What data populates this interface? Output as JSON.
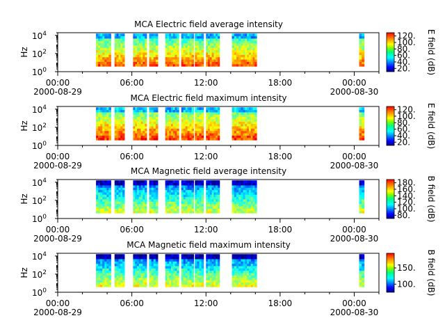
{
  "chart_data": [
    {
      "type": "heatmap",
      "title": "MCA  Electric field average intensity",
      "ylabel": "Hz",
      "y_scale": "log",
      "ylim": [
        1,
        20000
      ],
      "y_ticks": [
        {
          "value": 1,
          "base": "10",
          "exp": "0"
        },
        {
          "value": 100,
          "base": "10",
          "exp": "2"
        },
        {
          "value": 10000,
          "base": "10",
          "exp": "4"
        }
      ],
      "x_ticks": [
        "00:00",
        "06:00",
        "12:00",
        "18:00",
        "00:00"
      ],
      "x_date_labels": [
        "2000-08-29",
        "",
        "",
        "",
        "2000-08-30"
      ],
      "colorbar": {
        "label": "E field (dB)",
        "range": [
          10,
          130
        ],
        "ticks": [
          "20.",
          "40.",
          "60.",
          "80.",
          "100.",
          "120."
        ],
        "tick_values": [
          20,
          40,
          60,
          80,
          100,
          120
        ]
      },
      "data_intervals_hours": [
        [
          3.1,
          4.3
        ],
        [
          4.6,
          5.4
        ],
        [
          6.1,
          7.2
        ],
        [
          7.4,
          8.1
        ],
        [
          8.7,
          9.8
        ],
        [
          10.0,
          11.0
        ],
        [
          11.1,
          11.8
        ],
        [
          12.0,
          13.1
        ],
        [
          14.1,
          15.0
        ],
        [
          15.0,
          16.1
        ],
        [
          24.4,
          24.8
        ]
      ],
      "value_profile": {
        "low_freq_value": 105,
        "high_freq_value": 55,
        "top_band_value": 45
      }
    },
    {
      "type": "heatmap",
      "title": "MCA  Electric field maximum intensity",
      "ylabel": "Hz",
      "y_scale": "log",
      "ylim": [
        1,
        20000
      ],
      "y_ticks": [
        {
          "value": 1,
          "base": "10",
          "exp": "0"
        },
        {
          "value": 100,
          "base": "10",
          "exp": "2"
        },
        {
          "value": 10000,
          "base": "10",
          "exp": "4"
        }
      ],
      "x_ticks": [
        "00:00",
        "06:00",
        "12:00",
        "18:00",
        "00:00"
      ],
      "x_date_labels": [
        "2000-08-29",
        "",
        "",
        "",
        "2000-08-30"
      ],
      "colorbar": {
        "label": "E field (dB)",
        "range": [
          10,
          130
        ],
        "ticks": [
          "20.",
          "40.",
          "60.",
          "80.",
          "100.",
          "120."
        ],
        "tick_values": [
          20,
          40,
          60,
          80,
          100,
          120
        ]
      },
      "data_intervals_hours": [
        [
          3.1,
          4.3
        ],
        [
          4.6,
          5.4
        ],
        [
          6.1,
          7.2
        ],
        [
          7.4,
          8.1
        ],
        [
          8.7,
          9.8
        ],
        [
          10.0,
          11.0
        ],
        [
          11.1,
          11.8
        ],
        [
          12.0,
          13.1
        ],
        [
          14.1,
          15.0
        ],
        [
          15.0,
          16.1
        ],
        [
          24.4,
          24.8
        ]
      ],
      "value_profile": {
        "low_freq_value": 108,
        "high_freq_value": 62,
        "top_band_value": 48
      }
    },
    {
      "type": "heatmap",
      "title": "MCA  Magnetic field average intensity",
      "ylabel": "Hz",
      "y_scale": "log",
      "ylim": [
        1,
        20000
      ],
      "y_ticks": [
        {
          "value": 1,
          "base": "10",
          "exp": "0"
        },
        {
          "value": 100,
          "base": "10",
          "exp": "2"
        },
        {
          "value": 10000,
          "base": "10",
          "exp": "4"
        }
      ],
      "x_ticks": [
        "00:00",
        "06:00",
        "12:00",
        "18:00",
        "00:00"
      ],
      "x_date_labels": [
        "2000-08-29",
        "",
        "",
        "",
        "2000-08-30"
      ],
      "colorbar": {
        "label": "B field (dB)",
        "range": [
          70,
          190
        ],
        "ticks": [
          "80.",
          "100.",
          "120.",
          "140.",
          "160.",
          "180."
        ],
        "tick_values": [
          80,
          100,
          120,
          140,
          160,
          180
        ]
      },
      "data_intervals_hours": [
        [
          3.1,
          4.3
        ],
        [
          4.6,
          5.4
        ],
        [
          6.1,
          7.2
        ],
        [
          7.4,
          8.1
        ],
        [
          8.7,
          9.8
        ],
        [
          10.0,
          11.0
        ],
        [
          11.1,
          11.8
        ],
        [
          12.0,
          13.1
        ],
        [
          14.1,
          15.0
        ],
        [
          15.0,
          16.1
        ],
        [
          24.4,
          24.8
        ]
      ],
      "value_profile": {
        "low_freq_value": 140,
        "high_freq_value": 95,
        "top_band_value": 78
      }
    },
    {
      "type": "heatmap",
      "title": "MCA  Magnetic field maximum intensity",
      "ylabel": "Hz",
      "y_scale": "log",
      "ylim": [
        1,
        20000
      ],
      "y_ticks": [
        {
          "value": 1,
          "base": "10",
          "exp": "0"
        },
        {
          "value": 100,
          "base": "10",
          "exp": "2"
        },
        {
          "value": 10000,
          "base": "10",
          "exp": "4"
        }
      ],
      "x_ticks": [
        "00:00",
        "06:00",
        "12:00",
        "18:00",
        "00:00"
      ],
      "x_date_labels": [
        "2000-08-29",
        "",
        "",
        "",
        "2000-08-30"
      ],
      "colorbar": {
        "label": "B field (dB)",
        "range": [
          75,
          195
        ],
        "ticks": [
          "100.",
          "150."
        ],
        "tick_values": [
          100,
          150
        ]
      },
      "data_intervals_hours": [
        [
          3.1,
          4.3
        ],
        [
          4.6,
          5.4
        ],
        [
          6.1,
          7.2
        ],
        [
          7.4,
          8.1
        ],
        [
          8.7,
          9.8
        ],
        [
          10.0,
          11.0
        ],
        [
          11.1,
          11.8
        ],
        [
          12.0,
          13.1
        ],
        [
          14.1,
          15.0
        ],
        [
          15.0,
          16.1
        ],
        [
          24.4,
          24.8
        ]
      ],
      "value_profile": {
        "low_freq_value": 148,
        "high_freq_value": 100,
        "top_band_value": 80
      }
    }
  ],
  "x_range_hours": [
    0,
    26
  ]
}
